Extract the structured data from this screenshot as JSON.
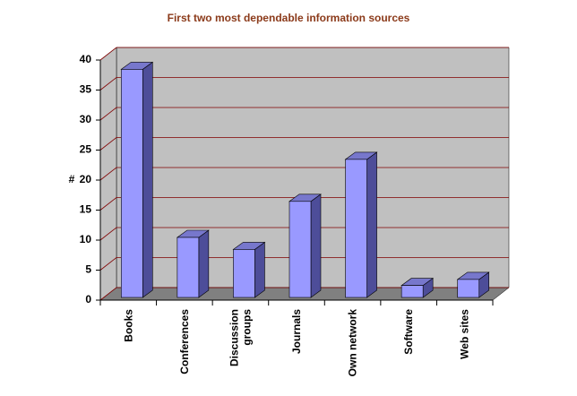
{
  "chart_data": {
    "type": "bar3d",
    "title": "First two most dependable information sources",
    "y_label": "#",
    "categories": [
      "Books",
      "Conferences",
      "Discussion groups",
      "Journals",
      "Own network",
      "Software",
      "Web sites"
    ],
    "values": [
      38,
      10,
      8,
      16,
      23,
      2,
      3
    ],
    "color": "#9999ff",
    "ylim": [
      0,
      40
    ],
    "yticks": [
      0,
      5,
      10,
      15,
      20,
      25,
      30,
      35,
      40
    ],
    "grid": true
  }
}
